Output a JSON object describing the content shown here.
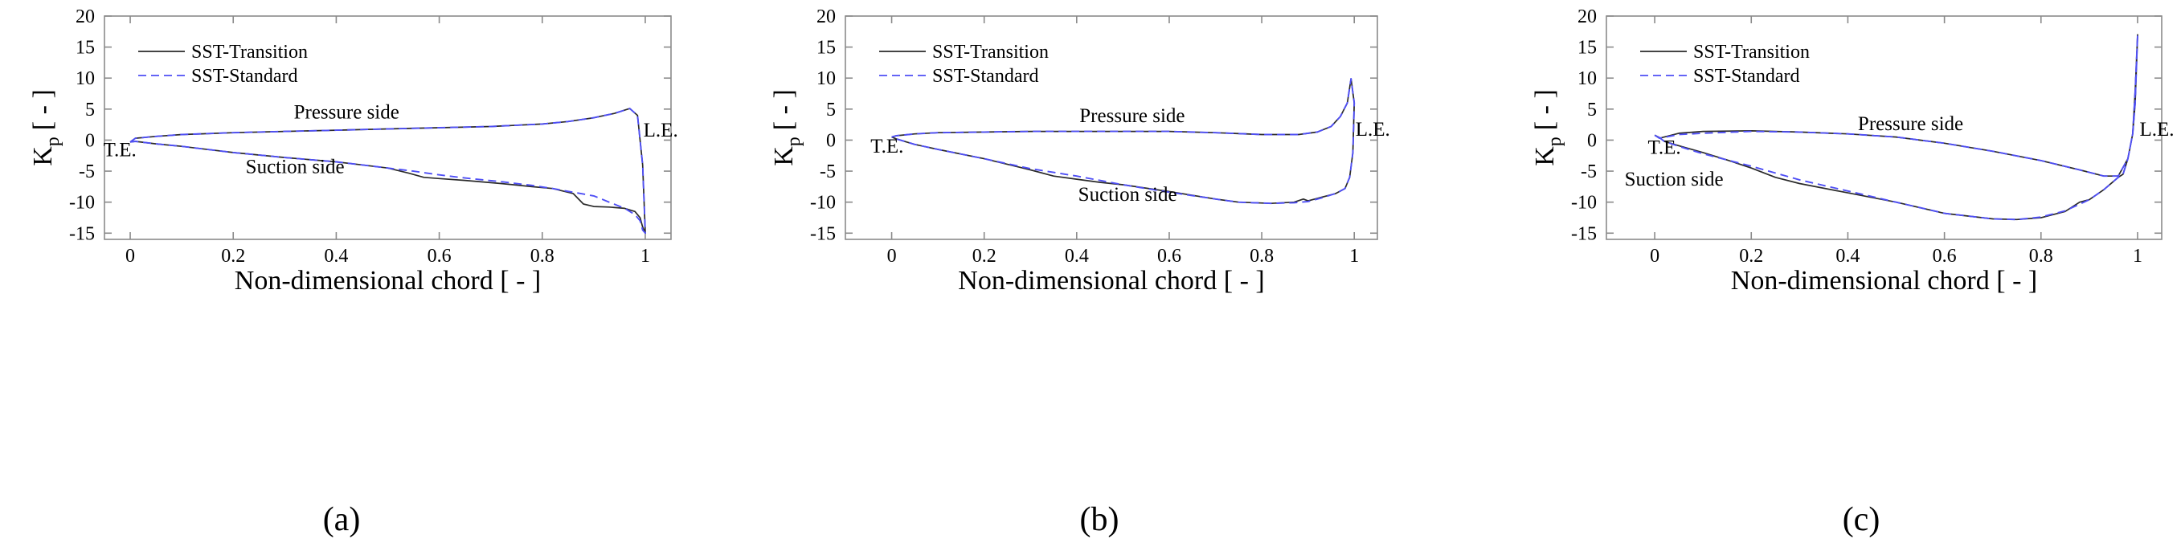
{
  "figure": {
    "captions": [
      "(a)",
      "(b)",
      "(c)"
    ]
  },
  "chart_data": [
    {
      "type": "line",
      "panel": "a",
      "caption_letter": "a",
      "xlabel": "Non-dimensional chord [ - ]",
      "ylabel_main": "K",
      "ylabel_sub": "p",
      "ylabel_unit": "[ - ]",
      "xlim": [
        -0.05,
        1.05
      ],
      "ylim": [
        -16,
        20
      ],
      "xticks": [
        0,
        0.2,
        0.4,
        0.6,
        0.8,
        1
      ],
      "xtick_labels": [
        "0",
        "0.2",
        "0.4",
        "0.6",
        "0.8",
        "1"
      ],
      "yticks": [
        -15,
        -10,
        -5,
        0,
        5,
        10,
        15,
        20
      ],
      "ytick_labels": [
        "-15",
        "-10",
        "-5",
        "0",
        "5",
        "10",
        "15",
        "20"
      ],
      "legend": {
        "position": "top-left",
        "entries": [
          "SST-Transition",
          "SST-Standard"
        ]
      },
      "annotations": [
        {
          "text": "Pressure side",
          "x": 0.42,
          "y": 3.5
        },
        {
          "text": "Suction side",
          "x": 0.32,
          "y": -5.3
        },
        {
          "text": "T.E.",
          "x": -0.02,
          "y": -2.6
        },
        {
          "text": "L.E.",
          "x": 1.03,
          "y": 0.6
        }
      ],
      "series": [
        {
          "name": "SST-Transition",
          "color": "#2a2a2a",
          "dash": "",
          "x": [
            0,
            0.01,
            0.05,
            0.1,
            0.2,
            0.3,
            0.4,
            0.5,
            0.6,
            0.7,
            0.8,
            0.85,
            0.9,
            0.94,
            0.97,
            0.985,
            0.995,
            1.0,
            0.995,
            0.99,
            0.98,
            0.96,
            0.93,
            0.9,
            0.88,
            0.86,
            0.82,
            0.78,
            0.72,
            0.65,
            0.6,
            0.57,
            0.54,
            0.5,
            0.45,
            0.4,
            0.3,
            0.2,
            0.1,
            0.05,
            0.01,
            0
          ],
          "y": [
            -0.3,
            0.3,
            0.6,
            0.9,
            1.2,
            1.4,
            1.6,
            1.8,
            2.0,
            2.2,
            2.6,
            3.0,
            3.6,
            4.3,
            5.1,
            4.0,
            -4.0,
            -15.0,
            -14.0,
            -12.5,
            -11.5,
            -11.0,
            -10.8,
            -10.7,
            -10.3,
            -8.6,
            -7.8,
            -7.5,
            -7.0,
            -6.5,
            -6.2,
            -6.0,
            -5.3,
            -4.5,
            -4.0,
            -3.5,
            -2.8,
            -2.0,
            -1.0,
            -0.6,
            -0.2,
            -0.3
          ]
        },
        {
          "name": "SST-Standard",
          "color": "#4f4ff5",
          "dash": "10,6",
          "x": [
            0,
            0.01,
            0.05,
            0.1,
            0.2,
            0.3,
            0.4,
            0.5,
            0.6,
            0.7,
            0.8,
            0.85,
            0.9,
            0.94,
            0.97,
            0.985,
            0.995,
            1.0,
            0.995,
            0.99,
            0.98,
            0.96,
            0.93,
            0.9,
            0.86,
            0.82,
            0.78,
            0.72,
            0.65,
            0.6,
            0.55,
            0.5,
            0.45,
            0.4,
            0.3,
            0.2,
            0.1,
            0.05,
            0.01,
            0
          ],
          "y": [
            -0.3,
            0.3,
            0.6,
            0.9,
            1.2,
            1.4,
            1.6,
            1.8,
            2.0,
            2.2,
            2.6,
            3.0,
            3.6,
            4.3,
            5.1,
            4.0,
            -4.0,
            -15.0,
            -14.5,
            -13.0,
            -12.0,
            -11.0,
            -10.0,
            -9.0,
            -8.4,
            -7.8,
            -7.3,
            -6.7,
            -6.1,
            -5.6,
            -5.0,
            -4.5,
            -4.0,
            -3.5,
            -2.8,
            -2.0,
            -1.0,
            -0.6,
            -0.2,
            -0.3
          ]
        }
      ]
    },
    {
      "type": "line",
      "panel": "b",
      "caption_letter": "b",
      "xlabel": "Non-dimensional chord [ - ]",
      "ylabel_main": "K",
      "ylabel_sub": "p",
      "ylabel_unit": "[ - ]",
      "xlim": [
        -0.1,
        1.05
      ],
      "ylim": [
        -16,
        20
      ],
      "xticks": [
        0,
        0.2,
        0.4,
        0.6,
        0.8,
        1
      ],
      "xtick_labels": [
        "0",
        "0.2",
        "0.4",
        "0.6",
        "0.8",
        "1"
      ],
      "yticks": [
        -15,
        -10,
        -5,
        0,
        5,
        10,
        15,
        20
      ],
      "ytick_labels": [
        "-15",
        "-10",
        "-5",
        "0",
        "5",
        "10",
        "15",
        "20"
      ],
      "legend": {
        "position": "top-left",
        "entries": [
          "SST-Transition",
          "SST-Standard"
        ]
      },
      "annotations": [
        {
          "text": "Pressure side",
          "x": 0.52,
          "y": 2.9
        },
        {
          "text": "Suction side",
          "x": 0.51,
          "y": -9.8
        },
        {
          "text": "T.E.",
          "x": -0.01,
          "y": -2.0
        },
        {
          "text": "L.E.",
          "x": 1.04,
          "y": 0.7
        }
      ],
      "series": [
        {
          "name": "SST-Transition",
          "color": "#2a2a2a",
          "dash": "",
          "x": [
            0,
            0.01,
            0.05,
            0.1,
            0.2,
            0.3,
            0.4,
            0.5,
            0.6,
            0.7,
            0.8,
            0.88,
            0.92,
            0.95,
            0.97,
            0.985,
            0.993,
            1.0,
            0.997,
            0.99,
            0.98,
            0.96,
            0.93,
            0.9,
            0.89,
            0.87,
            0.82,
            0.75,
            0.7,
            0.6,
            0.5,
            0.45,
            0.4,
            0.35,
            0.3,
            0.2,
            0.1,
            0.05,
            0.01,
            0
          ],
          "y": [
            0.5,
            0.7,
            1.0,
            1.2,
            1.3,
            1.4,
            1.4,
            1.4,
            1.4,
            1.2,
            0.9,
            0.9,
            1.3,
            2.2,
            3.8,
            6.0,
            9.9,
            6.0,
            -2.0,
            -6.0,
            -7.8,
            -8.6,
            -9.2,
            -9.8,
            -9.5,
            -10.0,
            -10.2,
            -10.0,
            -9.5,
            -8.3,
            -7.2,
            -6.8,
            -6.3,
            -5.8,
            -4.8,
            -3.0,
            -1.5,
            -0.7,
            0.2,
            0.5
          ]
        },
        {
          "name": "SST-Standard",
          "color": "#4f4ff5",
          "dash": "10,6",
          "x": [
            0,
            0.01,
            0.05,
            0.1,
            0.2,
            0.3,
            0.4,
            0.5,
            0.6,
            0.7,
            0.8,
            0.88,
            0.92,
            0.95,
            0.97,
            0.985,
            0.993,
            1.0,
            0.997,
            0.99,
            0.98,
            0.96,
            0.93,
            0.9,
            0.87,
            0.82,
            0.75,
            0.7,
            0.6,
            0.5,
            0.4,
            0.3,
            0.2,
            0.1,
            0.05,
            0.01,
            0
          ],
          "y": [
            0.5,
            0.7,
            1.0,
            1.2,
            1.3,
            1.4,
            1.4,
            1.4,
            1.4,
            1.2,
            0.9,
            0.9,
            1.3,
            2.2,
            3.8,
            6.0,
            9.9,
            6.0,
            -2.0,
            -6.0,
            -7.8,
            -8.6,
            -9.3,
            -9.9,
            -10.1,
            -10.2,
            -10.0,
            -9.5,
            -8.4,
            -7.2,
            -5.8,
            -4.6,
            -3.0,
            -1.5,
            -0.7,
            0.2,
            0.5
          ]
        }
      ]
    },
    {
      "type": "line",
      "panel": "c",
      "caption_letter": "c",
      "xlabel": "Non-dimensional chord [ - ]",
      "ylabel_main": "K",
      "ylabel_sub": "p",
      "ylabel_unit": "[ - ]",
      "xlim": [
        -0.1,
        1.05
      ],
      "ylim": [
        -16,
        20
      ],
      "xticks": [
        0,
        0.2,
        0.4,
        0.6,
        0.8,
        1
      ],
      "xtick_labels": [
        "0",
        "0.2",
        "0.4",
        "0.6",
        "0.8",
        "1"
      ],
      "yticks": [
        -15,
        -10,
        -5,
        0,
        5,
        10,
        15,
        20
      ],
      "ytick_labels": [
        "-15",
        "-10",
        "-5",
        "0",
        "5",
        "10",
        "15",
        "20"
      ],
      "legend": {
        "position": "top-left",
        "entries": [
          "SST-Transition",
          "SST-Standard"
        ]
      },
      "annotations": [
        {
          "text": "Pressure side",
          "x": 0.53,
          "y": 1.6
        },
        {
          "text": "Suction side",
          "x": 0.04,
          "y": -7.3
        },
        {
          "text": "T.E.",
          "x": 0.02,
          "y": -2.2
        },
        {
          "text": "L.E.",
          "x": 1.04,
          "y": 0.7
        }
      ],
      "series": [
        {
          "name": "SST-Transition",
          "color": "#2a2a2a",
          "dash": "",
          "x": [
            0,
            0.01,
            0.05,
            0.1,
            0.2,
            0.3,
            0.4,
            0.5,
            0.6,
            0.7,
            0.8,
            0.88,
            0.93,
            0.96,
            0.98,
            0.99,
            0.995,
            1.0,
            0.995,
            0.99,
            0.98,
            0.97,
            0.96,
            0.93,
            0.9,
            0.88,
            0.85,
            0.8,
            0.75,
            0.7,
            0.6,
            0.5,
            0.4,
            0.3,
            0.25,
            0.2,
            0.15,
            0.1,
            0.05,
            0.02,
            0.01,
            0
          ],
          "y": [
            0.8,
            0.3,
            1.1,
            1.4,
            1.5,
            1.3,
            1.0,
            0.5,
            -0.5,
            -1.8,
            -3.3,
            -4.8,
            -5.8,
            -5.8,
            -3.0,
            1.0,
            6.0,
            17.0,
            8.0,
            1.0,
            -3.0,
            -5.5,
            -6.0,
            -8.0,
            -9.6,
            -10.0,
            -11.5,
            -12.5,
            -12.8,
            -12.7,
            -11.8,
            -10.0,
            -8.5,
            -7.0,
            -6.0,
            -4.5,
            -3.2,
            -2.0,
            -0.9,
            -0.2,
            0.4,
            0.8
          ]
        },
        {
          "name": "SST-Standard",
          "color": "#4f4ff5",
          "dash": "10,6",
          "x": [
            0,
            0.01,
            0.05,
            0.1,
            0.2,
            0.3,
            0.4,
            0.5,
            0.6,
            0.7,
            0.8,
            0.88,
            0.93,
            0.96,
            0.98,
            0.99,
            0.995,
            1.0,
            0.995,
            0.99,
            0.98,
            0.97,
            0.96,
            0.93,
            0.9,
            0.85,
            0.8,
            0.75,
            0.7,
            0.6,
            0.5,
            0.4,
            0.3,
            0.2,
            0.1,
            0.05,
            0.02,
            0.01,
            0
          ],
          "y": [
            0.8,
            0.3,
            0.9,
            1.1,
            1.4,
            1.3,
            1.0,
            0.5,
            -0.5,
            -1.8,
            -3.3,
            -4.8,
            -5.8,
            -5.8,
            -3.0,
            1.0,
            6.0,
            17.0,
            8.0,
            1.0,
            -3.0,
            -5.5,
            -6.0,
            -8.0,
            -9.6,
            -11.4,
            -12.4,
            -12.8,
            -12.7,
            -11.8,
            -10.0,
            -8.2,
            -6.4,
            -4.2,
            -2.2,
            -1.0,
            -0.2,
            0.4,
            0.8
          ]
        }
      ]
    }
  ]
}
